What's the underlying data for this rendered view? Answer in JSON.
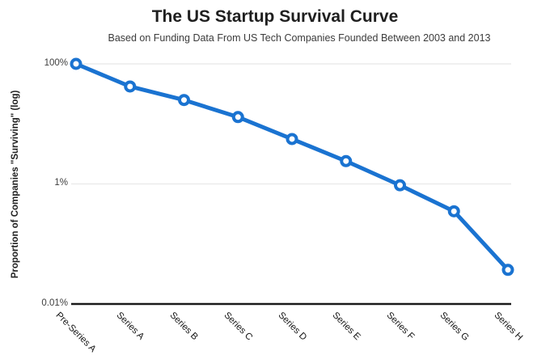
{
  "title": "The US Startup Survival Curve",
  "subtitle": "Based on Funding Data From US Tech Companies Founded Between 2003 and 2013",
  "chart_data": {
    "type": "line",
    "title": "The US Startup Survival Curve",
    "subtitle": "Based on Funding Data From US Tech Companies Founded Between 2003 and 2013",
    "categories": [
      "Pre-Series A",
      "Series A",
      "Series B",
      "Series C",
      "Series D",
      "Series E",
      "Series F",
      "Series G",
      "Series H"
    ],
    "values": [
      100,
      42,
      25,
      13,
      5.6,
      2.4,
      0.95,
      0.35,
      0.037
    ],
    "units": "percent",
    "xlabel": "",
    "ylabel": "Proportion of Companies \"Surviving\" (log)",
    "yscale": "log",
    "ylim": [
      0.01,
      100
    ],
    "yticks": [
      {
        "value": 100,
        "label": "100%"
      },
      {
        "value": 1,
        "label": "1%"
      },
      {
        "value": 0.01,
        "label": "0.01%"
      }
    ],
    "grid": "horizontal-at-labeled-ticks-only",
    "legend": "none",
    "marker": "open-circle",
    "x_tick_rotation_deg": 45
  },
  "colors": {
    "line": "#1a73d1",
    "marker_fill": "#ffffff",
    "grid": "#ebebeb",
    "axis": "#1a1a1a",
    "title_text": "#1f1f1f",
    "subtitle_text": "#3b3b3b",
    "tick_text": "#3d3d3d",
    "background": "#ffffff"
  }
}
